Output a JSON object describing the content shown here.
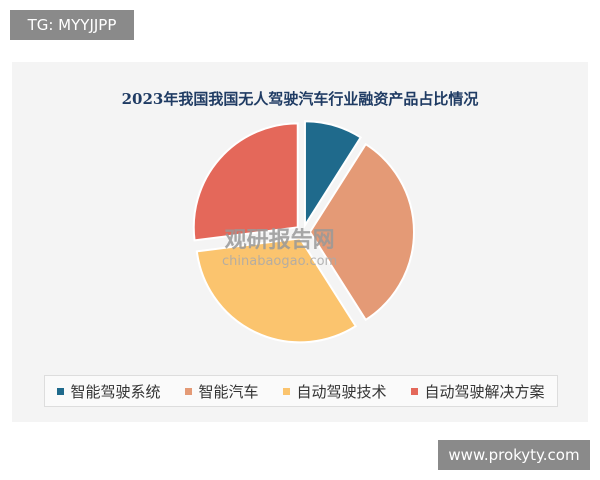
{
  "overlay_tag": "TG: MYYJJPP",
  "site_badge": "www.prokyty.com",
  "watermark": {
    "cn": "观研报告网",
    "en": "chinabaogao.com"
  },
  "chart_data": {
    "type": "pie",
    "title": "2023年我国我国无人驾驶汽车行业融资产品占比情况",
    "categories": [
      "智能驾驶系统",
      "智能汽车",
      "自动驾驶技术",
      "自动驾驶解决方案"
    ],
    "values": [
      9,
      32,
      32,
      27
    ],
    "colors": [
      "#1f6a8c",
      "#e49a76",
      "#fbc46e",
      "#e4685a"
    ],
    "legend_position": "bottom"
  }
}
